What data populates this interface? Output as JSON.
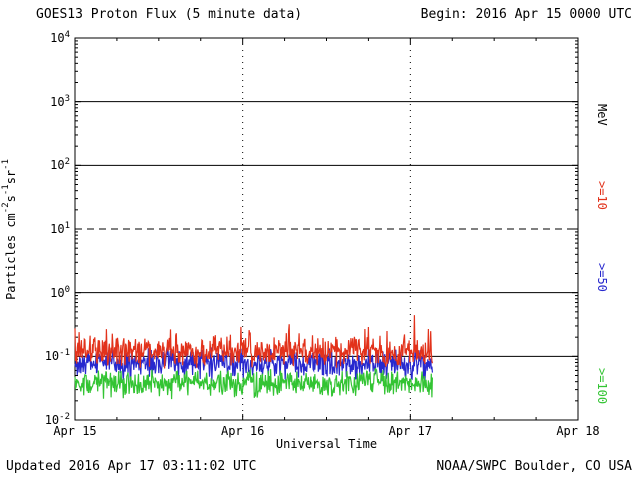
{
  "header": {
    "title": "GOES13 Proton Flux (5 minute data)",
    "begin": "Begin: 2016 Apr 15 0000 UTC"
  },
  "footer": {
    "updated": "Updated 2016 Apr 17 03:11:02 UTC",
    "source": "NOAA/SWPC Boulder, CO USA"
  },
  "axes": {
    "xlabel": "Universal Time",
    "x_tick_labels": [
      "Apr 15",
      "Apr 16",
      "Apr 17",
      "Apr 18"
    ],
    "y_tick_mantissa": "10",
    "y_tick_exponents": [
      "4",
      "3",
      "2",
      "1",
      "0",
      "-1",
      "-2"
    ],
    "ylabel_parts": [
      {
        "t": "Particles cm"
      },
      {
        "t": "-2",
        "sup": true
      },
      {
        "t": "s"
      },
      {
        "t": "-1",
        "sup": true
      },
      {
        "t": "sr"
      },
      {
        "t": "-1",
        "sup": true
      }
    ]
  },
  "right_axis": {
    "unit": "MeV",
    "labels": [
      ">=10",
      ">=50",
      ">=100"
    ]
  },
  "chart_data": {
    "type": "line",
    "title": "GOES13 Proton Flux (5 minute data)",
    "xlabel": "Universal Time",
    "ylabel": "Particles cm^-2 s^-1 sr^-1 (log scale)",
    "x_day_labels": [
      "Apr 15",
      "Apr 16",
      "Apr 17",
      "Apr 18"
    ],
    "x_range_days": [
      0,
      3
    ],
    "y_log10_range": [
      -2,
      4
    ],
    "solid_hlines_log10": [
      3,
      2,
      0,
      -1
    ],
    "dashed_hline_log10": 1,
    "dotted_vlines_day": [
      1,
      2
    ],
    "grid_color": "#000000",
    "data_start_day": 0,
    "data_end_day": 2.133,
    "sample_interval_days": 0.003472,
    "seed": 20160417,
    "series": [
      {
        "name": ">=10 MeV",
        "color": "#e2321b",
        "mean_flux": 0.12,
        "log10_base": -0.93,
        "log10_noise_amp": 0.27,
        "spike_prob": 0.06,
        "spike_log10_amp": 0.37
      },
      {
        "name": ">=50 MeV",
        "color": "#2728ce",
        "mean_flux": 0.08,
        "log10_base": -1.12,
        "log10_noise_amp": 0.28,
        "spike_prob": 0.04,
        "spike_log10_amp": 0.15
      },
      {
        "name": ">=100 MeV",
        "color": "#33c433",
        "mean_flux": 0.04,
        "log10_base": -1.42,
        "log10_noise_amp": 0.26,
        "spike_prob": 0.04,
        "spike_log10_amp": 0.11
      }
    ]
  }
}
